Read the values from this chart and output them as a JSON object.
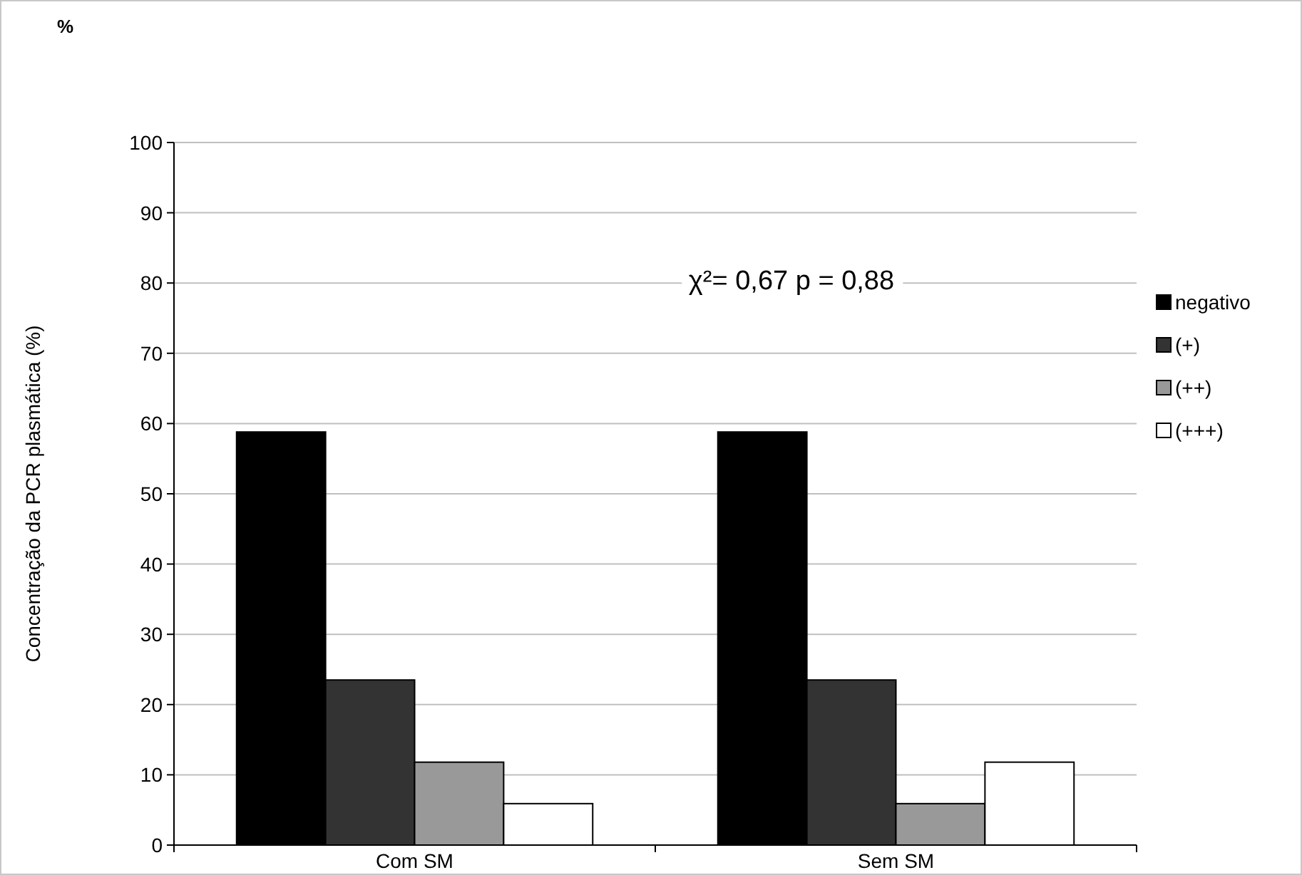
{
  "chart_data": {
    "type": "bar",
    "title": "%",
    "ylabel": "Concentração da PCR plasmática (%)",
    "categories": [
      "Com SM",
      "Sem SM"
    ],
    "series": [
      {
        "name": "negativo",
        "color": "#000000",
        "values": [
          58.8,
          58.8
        ]
      },
      {
        "name": "(+)",
        "color": "#333333",
        "values": [
          23.5,
          23.5
        ]
      },
      {
        "name": "(++)",
        "color": "#999999",
        "values": [
          11.8,
          5.9
        ]
      },
      {
        "name": "(+++)",
        "color": "#ffffff",
        "values": [
          5.9,
          11.8
        ]
      }
    ],
    "ylim": [
      0,
      100
    ],
    "yticks": [
      0,
      10,
      20,
      30,
      40,
      50,
      60,
      70,
      80,
      90,
      100
    ],
    "grid": "y",
    "legend": "right",
    "annotations": [
      "χ²= 0,67 p = 0,88"
    ]
  }
}
